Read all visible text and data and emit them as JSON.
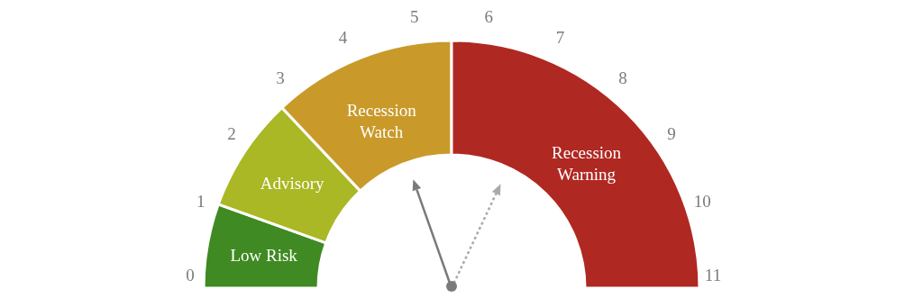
{
  "chart_data": {
    "type": "donut",
    "categories": [
      "Low Risk",
      "Advisory",
      "Recession Watch",
      "Recession Warning"
    ],
    "values": [
      11,
      15,
      24,
      50
    ],
    "colors": [
      "#3f8a22",
      "#a9b824",
      "#c99a2a",
      "#b02822"
    ],
    "annotations": [
      "0",
      "1",
      "2",
      "3",
      "4",
      "5",
      "6",
      "7",
      "8",
      "9",
      "10",
      "11"
    ],
    "needle": "Recession Watch"
  }
}
